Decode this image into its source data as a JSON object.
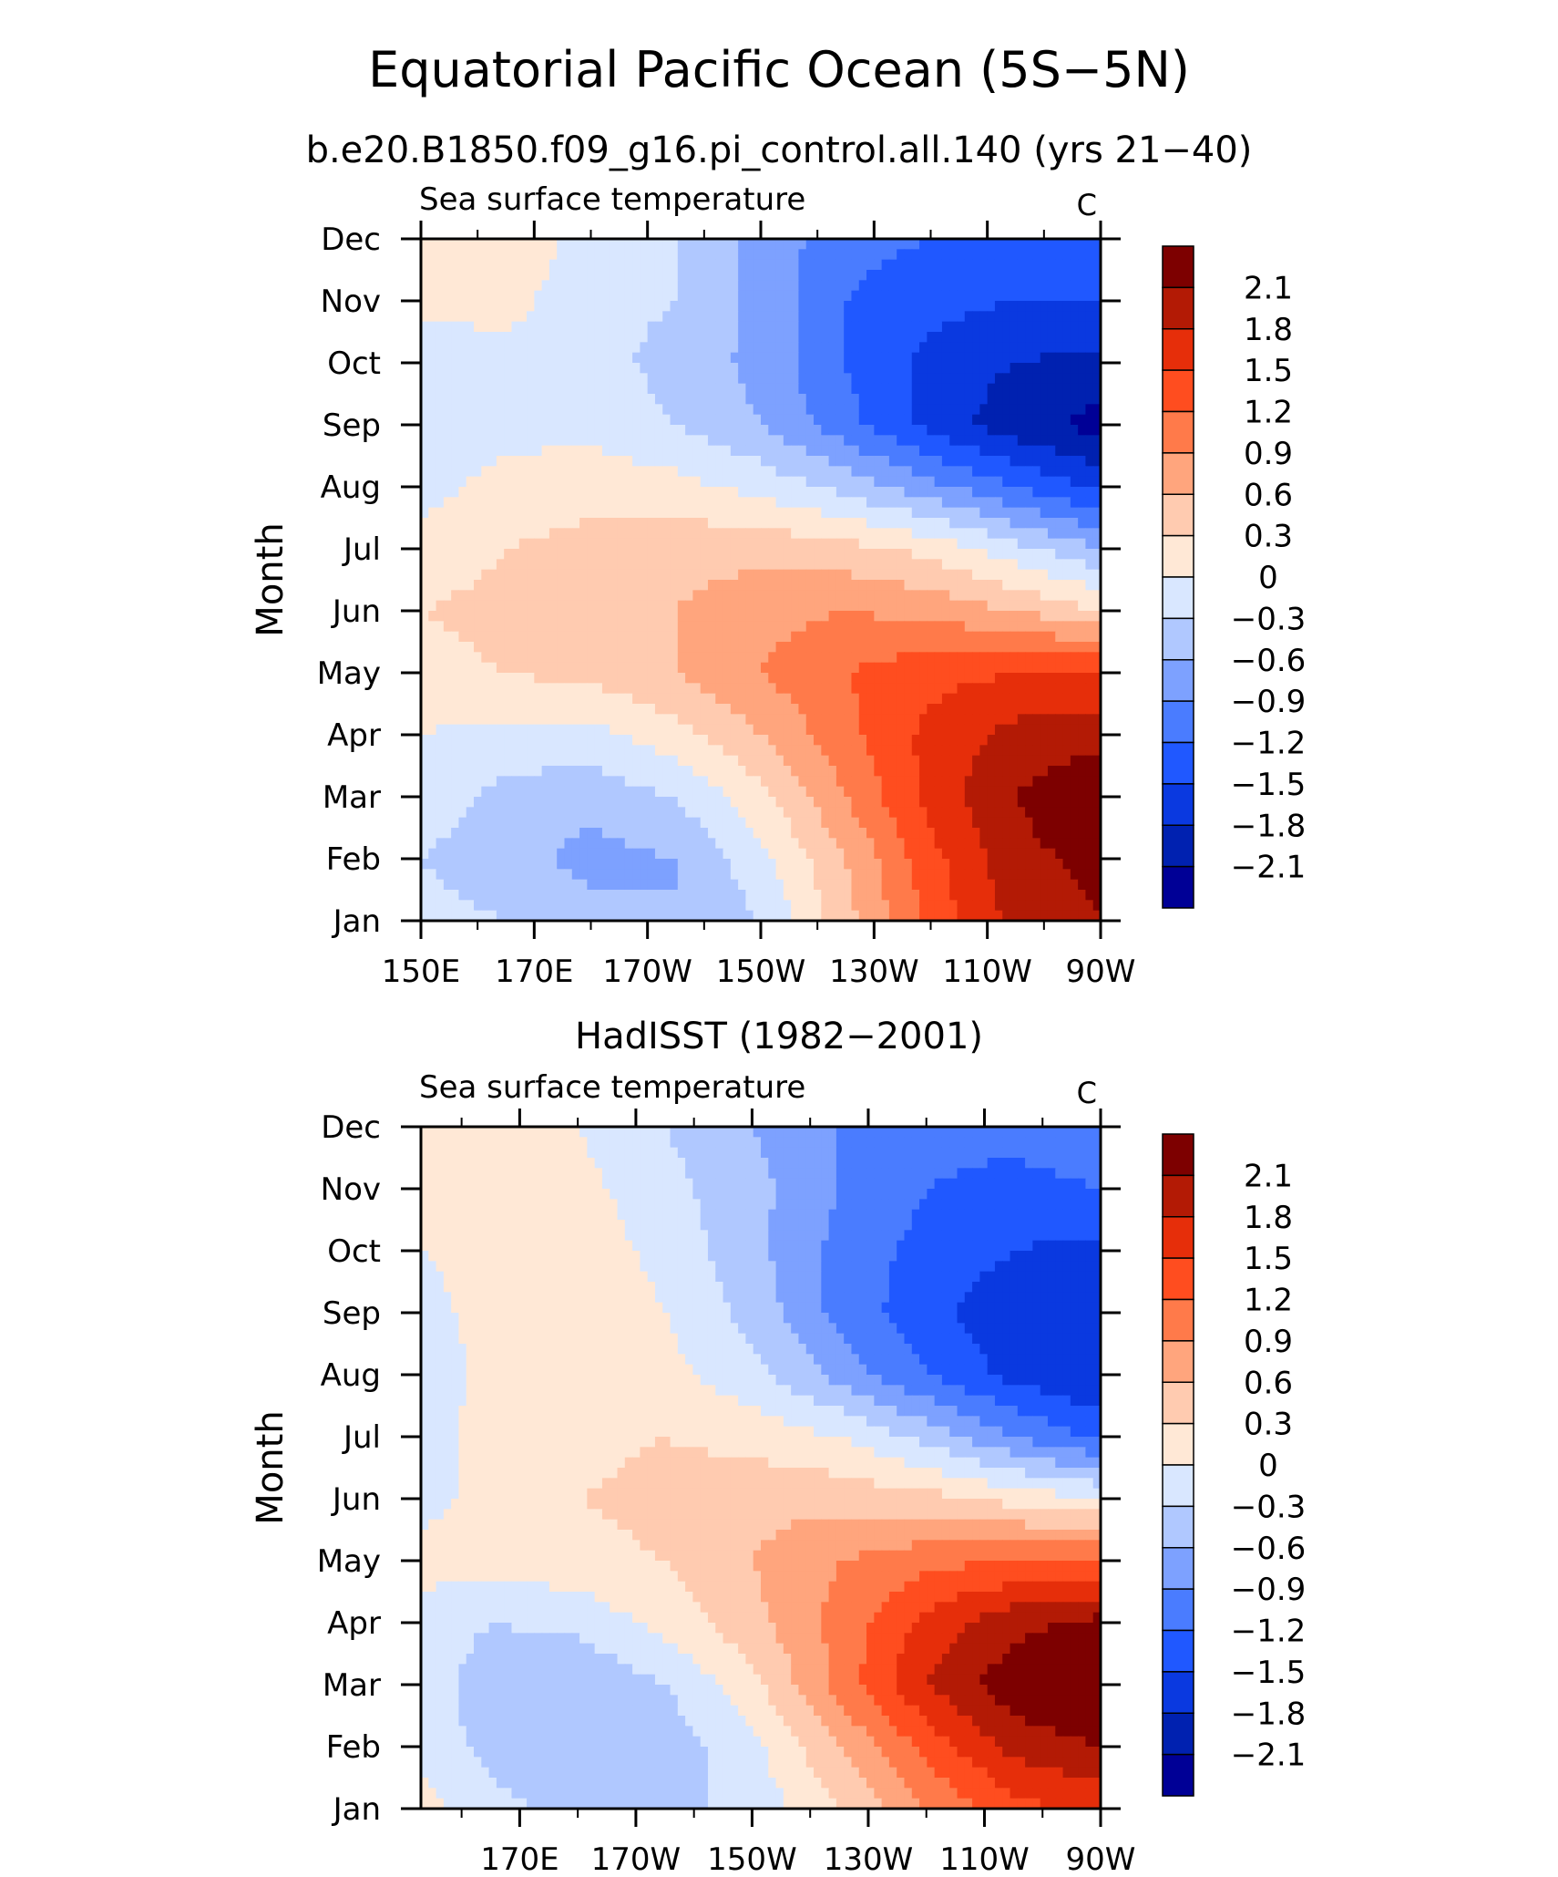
{
  "figure": {
    "title": "Equatorial Pacific Ocean (5S−5N)"
  },
  "colors": {
    "levels": [
      -2.1,
      -1.8,
      -1.5,
      -1.2,
      -0.9,
      -0.6,
      -0.3,
      0,
      0.3,
      0.6,
      0.9,
      1.2,
      1.5,
      1.8,
      2.1
    ],
    "fills": [
      "#000096",
      "#0021b0",
      "#0a39e0",
      "#2058ff",
      "#4a7cff",
      "#7da1ff",
      "#b0c8ff",
      "#d9e7ff",
      "#ffe8d6",
      "#ffcbb0",
      "#ffa57d",
      "#ff7a4a",
      "#ff4d1f",
      "#e62e0a",
      "#b31a05",
      "#7d0000"
    ]
  },
  "chart_data": [
    {
      "type": "heatmap",
      "title": "b.e20.B1850.f09_g16.pi_control.all.140 (yrs 21−40)",
      "subtitle": "Sea surface temperature",
      "units": "C",
      "ylabel": "Month",
      "xlabel": "",
      "x_ticks": [
        "150E",
        "170E",
        "170W",
        "150W",
        "130W",
        "110W",
        "90W"
      ],
      "x_tick_lon": [
        150,
        170,
        190,
        210,
        230,
        250,
        270
      ],
      "y_ticks": [
        "Jan",
        "Feb",
        "Mar",
        "Apr",
        "May",
        "Jun",
        "Jul",
        "Aug",
        "Sep",
        "Oct",
        "Nov",
        "Dec"
      ],
      "xlim": [
        150,
        270
      ],
      "colorbar_labels": [
        "2.1",
        "1.8",
        "1.5",
        "1.2",
        "0.9",
        "0.6",
        "0.3",
        "0",
        "−0.3",
        "−0.6",
        "−0.9",
        "−1.2",
        "−1.5",
        "−1.8",
        "−2.1"
      ],
      "lon": [
        150,
        165,
        180,
        195,
        210,
        225,
        240,
        255,
        270
      ],
      "month_values": [
        [
          -0.2,
          -0.3,
          -0.5,
          -0.6,
          -0.3,
          0.5,
          1.3,
          1.9,
          2.1
        ],
        [
          -0.3,
          -0.5,
          -0.7,
          -0.6,
          -0.1,
          0.6,
          1.4,
          2.0,
          2.2
        ],
        [
          -0.1,
          -0.4,
          -0.5,
          -0.3,
          0.2,
          0.9,
          1.6,
          2.1,
          2.4
        ],
        [
          0.0,
          -0.1,
          -0.1,
          0.2,
          0.6,
          1.1,
          1.6,
          1.9,
          2.0
        ],
        [
          0.2,
          0.3,
          0.4,
          0.6,
          0.9,
          1.2,
          1.4,
          1.5,
          1.5
        ],
        [
          0.3,
          0.4,
          0.5,
          0.6,
          0.8,
          0.9,
          0.8,
          0.6,
          0.3
        ],
        [
          0.1,
          0.3,
          0.4,
          0.5,
          0.5,
          0.4,
          0.2,
          -0.2,
          -0.6
        ],
        [
          -0.1,
          0.1,
          0.2,
          0.1,
          -0.1,
          -0.4,
          -0.8,
          -1.2,
          -1.6
        ],
        [
          -0.2,
          -0.1,
          -0.1,
          -0.3,
          -0.6,
          -1.1,
          -1.6,
          -2.0,
          -2.2
        ],
        [
          -0.2,
          -0.1,
          -0.2,
          -0.4,
          -0.7,
          -1.2,
          -1.6,
          -1.8,
          -1.9
        ],
        [
          0.1,
          0.1,
          -0.2,
          -0.3,
          -0.7,
          -1.2,
          -1.4,
          -1.5,
          -1.5
        ],
        [
          0.2,
          0.2,
          -0.1,
          -0.3,
          -0.7,
          -1.1,
          -1.2,
          -1.2,
          -1.2
        ]
      ]
    },
    {
      "type": "heatmap",
      "title": "HadISST (1982−2001)",
      "subtitle": "Sea surface temperature",
      "units": "C",
      "ylabel": "Month",
      "xlabel": "",
      "x_ticks": [
        "170E",
        "170W",
        "150W",
        "130W",
        "110W",
        "90W"
      ],
      "x_tick_lon": [
        170,
        190,
        210,
        230,
        250,
        270
      ],
      "y_ticks": [
        "Jan",
        "Feb",
        "Mar",
        "Apr",
        "May",
        "Jun",
        "Jul",
        "Aug",
        "Sep",
        "Oct",
        "Nov",
        "Dec"
      ],
      "xlim": [
        153,
        270
      ],
      "colorbar_labels": [
        "2.1",
        "1.8",
        "1.5",
        "1.2",
        "0.9",
        "0.6",
        "0.3",
        "0",
        "−0.3",
        "−0.6",
        "−0.9",
        "−1.2",
        "−1.5",
        "−1.8",
        "−2.1"
      ],
      "lon": [
        153,
        165,
        180,
        195,
        210,
        225,
        240,
        255,
        270
      ],
      "month_values": [
        [
          0.1,
          -0.2,
          -0.4,
          -0.4,
          -0.2,
          0.3,
          0.9,
          1.4,
          1.6
        ],
        [
          -0.1,
          -0.4,
          -0.6,
          -0.5,
          -0.1,
          0.6,
          1.3,
          1.9,
          2.1
        ],
        [
          -0.1,
          -0.5,
          -0.6,
          -0.3,
          0.2,
          1.0,
          1.8,
          2.3,
          2.5
        ],
        [
          -0.1,
          -0.3,
          -0.2,
          0.1,
          0.5,
          1.0,
          1.6,
          2.0,
          2.2
        ],
        [
          0.1,
          0.1,
          0.2,
          0.3,
          0.6,
          0.9,
          1.1,
          1.2,
          1.2
        ],
        [
          -0.1,
          0.1,
          0.3,
          0.4,
          0.5,
          0.5,
          0.4,
          0.2,
          0.0
        ],
        [
          -0.1,
          0.1,
          0.2,
          0.3,
          0.2,
          0.0,
          -0.4,
          -0.9,
          -1.3
        ],
        [
          -0.2,
          0.1,
          0.2,
          0.1,
          -0.2,
          -0.7,
          -1.2,
          -1.6,
          -1.8
        ],
        [
          -0.1,
          0.1,
          0.3,
          0.0,
          -0.4,
          -1.0,
          -1.4,
          -1.7,
          -1.8
        ],
        [
          0.0,
          0.1,
          0.2,
          -0.1,
          -0.5,
          -1.0,
          -1.3,
          -1.5,
          -1.6
        ],
        [
          0.1,
          0.1,
          0.1,
          -0.2,
          -0.5,
          -0.9,
          -1.2,
          -1.3,
          -1.2
        ],
        [
          0.1,
          0.1,
          0.0,
          -0.3,
          -0.6,
          -0.9,
          -1.1,
          -1.1,
          -1.0
        ]
      ]
    }
  ]
}
